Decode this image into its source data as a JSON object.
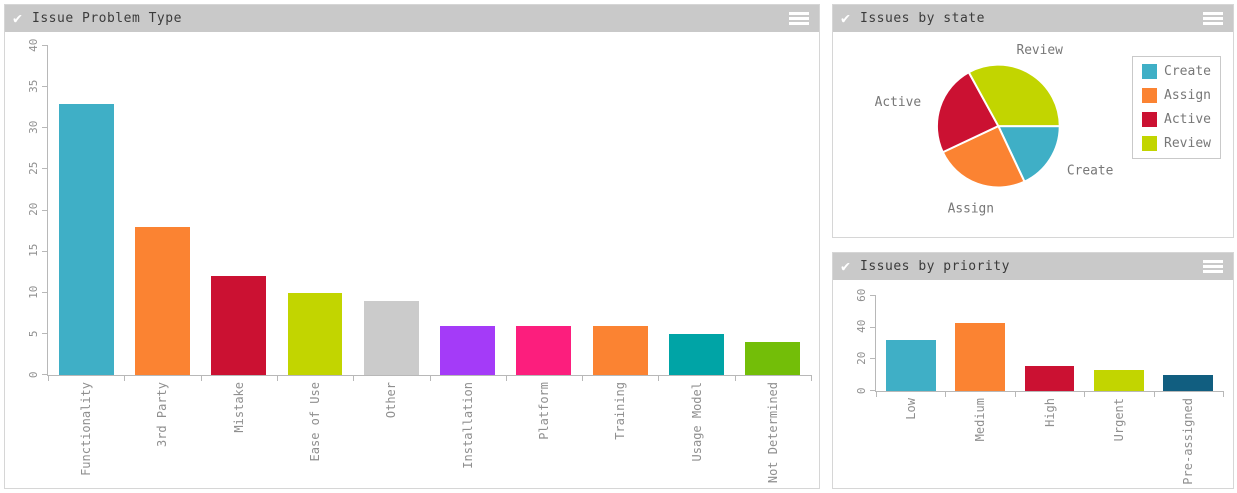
{
  "panels": {
    "problem_type": {
      "title": "Issue Problem Type",
      "check_icon": "check",
      "menu_icon": "menu"
    },
    "state": {
      "title": "Issues by state",
      "check_icon": "check",
      "menu_icon": "menu"
    },
    "priority": {
      "title": "Issues by priority",
      "check_icon": "check",
      "menu_icon": "menu"
    }
  },
  "icons": {
    "check_glyph": "✔"
  },
  "colors": {
    "header_bg": "#c9c9c9",
    "axis": "#b8b8b8",
    "tick_text": "#8f8f8f",
    "label_text": "#777777"
  },
  "chart_data": [
    {
      "id": "problem_type",
      "type": "bar",
      "title": "Issue Problem Type",
      "categories": [
        "Functionality",
        "3rd Party",
        "Mistake",
        "Ease of Use",
        "Other",
        "Installation",
        "Platform",
        "Training",
        "Usage Model",
        "Not Determined"
      ],
      "values": [
        33,
        18,
        12,
        10,
        9,
        6,
        6,
        6,
        5,
        4
      ],
      "bar_colors": [
        "#3FAFC6",
        "#FB8332",
        "#CB1132",
        "#C2D500",
        "#CBCBCB",
        "#A43BF8",
        "#FC1E7D",
        "#FB8332",
        "#00A4A6",
        "#73BE08"
      ],
      "xlabel": "",
      "ylabel": "",
      "ylim": [
        0,
        40
      ],
      "ytick_step": 5,
      "grid": false,
      "tick_label_rotation": -90,
      "legend_position": "none"
    },
    {
      "id": "state",
      "type": "pie",
      "title": "Issues by state",
      "labels": [
        "Create",
        "Assign",
        "Active",
        "Review"
      ],
      "values": [
        18,
        25,
        24,
        33
      ],
      "colors": [
        "#3FAFC6",
        "#FB8332",
        "#CB1132",
        "#C2D500"
      ],
      "start_angle_deg": 0,
      "direction": "clockwise",
      "legend_position": "right",
      "slice_gap_color": "#ffffff"
    },
    {
      "id": "priority",
      "type": "bar",
      "title": "Issues by priority",
      "categories": [
        "Low",
        "Medium",
        "High",
        "Urgent",
        "Pre-assigned"
      ],
      "values": [
        32,
        43,
        16,
        13,
        10
      ],
      "bar_colors": [
        "#3FAFC6",
        "#FB8332",
        "#CB1132",
        "#C2D500",
        "#115E80"
      ],
      "xlabel": "",
      "ylabel": "",
      "ylim": [
        0,
        60
      ],
      "ytick_step": 20,
      "grid": false,
      "tick_label_rotation": -90,
      "legend_position": "none"
    }
  ]
}
